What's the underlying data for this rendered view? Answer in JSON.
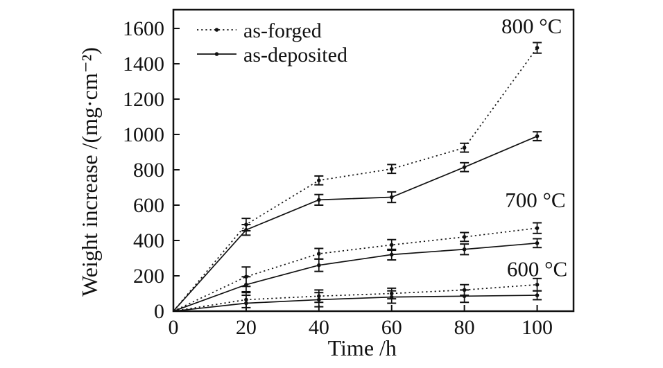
{
  "chart_data": {
    "type": "line",
    "title": "",
    "xlabel": "Time /h",
    "ylabel": "Weight increase /(mg·cm⁻²)",
    "xlim": [
      0,
      110
    ],
    "ylim": [
      0,
      1706
    ],
    "xticks": [
      0,
      20,
      40,
      60,
      80,
      100
    ],
    "yticks": [
      0,
      200,
      400,
      600,
      800,
      1000,
      1200,
      1400,
      1600
    ],
    "grid": false,
    "x": [
      0,
      20,
      40,
      60,
      80,
      100
    ],
    "series": [
      {
        "name": "as-forged",
        "group": "800 °C",
        "style": "dotted",
        "values": [
          0,
          490,
          740,
          805,
          925,
          1490
        ],
        "errors": [
          0,
          35,
          25,
          25,
          25,
          30
        ]
      },
      {
        "name": "as-deposited",
        "group": "800 °C",
        "style": "solid",
        "values": [
          0,
          460,
          630,
          645,
          815,
          990
        ],
        "errors": [
          0,
          30,
          30,
          30,
          25,
          25
        ]
      },
      {
        "name": "as-forged",
        "group": "700 °C",
        "style": "dotted",
        "values": [
          0,
          195,
          325,
          375,
          420,
          470
        ],
        "errors": [
          0,
          55,
          30,
          30,
          25,
          30
        ]
      },
      {
        "name": "as-deposited",
        "group": "700 °C",
        "style": "solid",
        "values": [
          0,
          150,
          260,
          320,
          350,
          385
        ],
        "errors": [
          0,
          45,
          35,
          30,
          30,
          25
        ]
      },
      {
        "name": "as-forged",
        "group": "600 °C",
        "style": "dotted",
        "values": [
          0,
          65,
          85,
          100,
          120,
          150
        ],
        "errors": [
          0,
          45,
          35,
          30,
          30,
          35
        ]
      },
      {
        "name": "as-deposited",
        "group": "600 °C",
        "style": "solid",
        "values": [
          0,
          45,
          65,
          80,
          85,
          90
        ],
        "errors": [
          0,
          45,
          40,
          35,
          35,
          25
        ]
      }
    ],
    "legend": {
      "position": "top-left",
      "entries": [
        {
          "label": "as-forged",
          "style": "dotted"
        },
        {
          "label": "as-deposited",
          "style": "solid"
        }
      ]
    },
    "annotations": [
      {
        "text": "800 °C",
        "x": 98.5,
        "y": 1612
      },
      {
        "text": "700 °C",
        "x": 99.5,
        "y": 628
      },
      {
        "text": "600 °C",
        "x": 100,
        "y": 238
      }
    ],
    "colors": {
      "line": "#111111",
      "background": "#ffffff"
    }
  }
}
